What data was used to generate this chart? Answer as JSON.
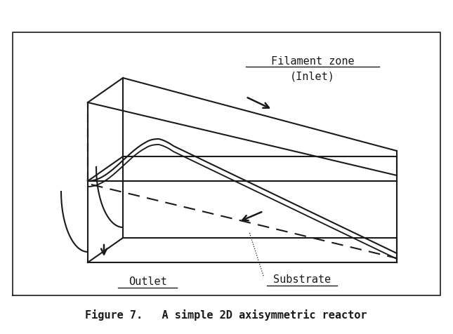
{
  "title": "Figure 7.   A simple 2D axisymmetric reactor",
  "label_filament": "Filament zone",
  "label_inlet": "(Inlet)",
  "label_outlet": "Outlet",
  "label_substrate": "Substrate",
  "bg_color": "#ffffff",
  "line_color": "#1a1a1a",
  "figsize": [
    6.45,
    4.77
  ],
  "dpi": 100
}
